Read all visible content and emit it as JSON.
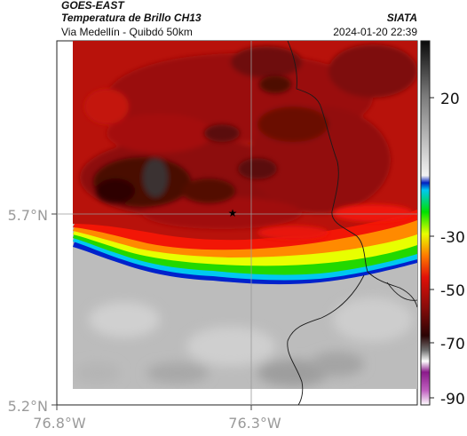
{
  "header": {
    "satellite": "GOES-EAST",
    "product": "Temperatura de Brillo CH13",
    "region": "Via Medellín - Quibdó 50km",
    "agency": "SIATA",
    "timestamp": "2024-01-20 22:39"
  },
  "axes": {
    "lat_labels": [
      "5.7°N",
      "5.2°N"
    ],
    "lon_labels": [
      "76.8°W",
      "76.3°W"
    ]
  },
  "colorbar": {
    "tick_labels": [
      "20",
      "-30",
      "-50",
      "-70",
      "-90"
    ]
  },
  "colors": {
    "cloud_core": "#4a0806",
    "cloud_mid": "#8a0c0a",
    "cloud_red": "#b0120c",
    "warm_red": "#ff1a00",
    "orange": "#ff8800",
    "yellow": "#e8ff00",
    "green": "#22dd00",
    "cyan": "#00c8f0",
    "blue": "#0022cc",
    "clear_sky": "#bdbdbd"
  }
}
